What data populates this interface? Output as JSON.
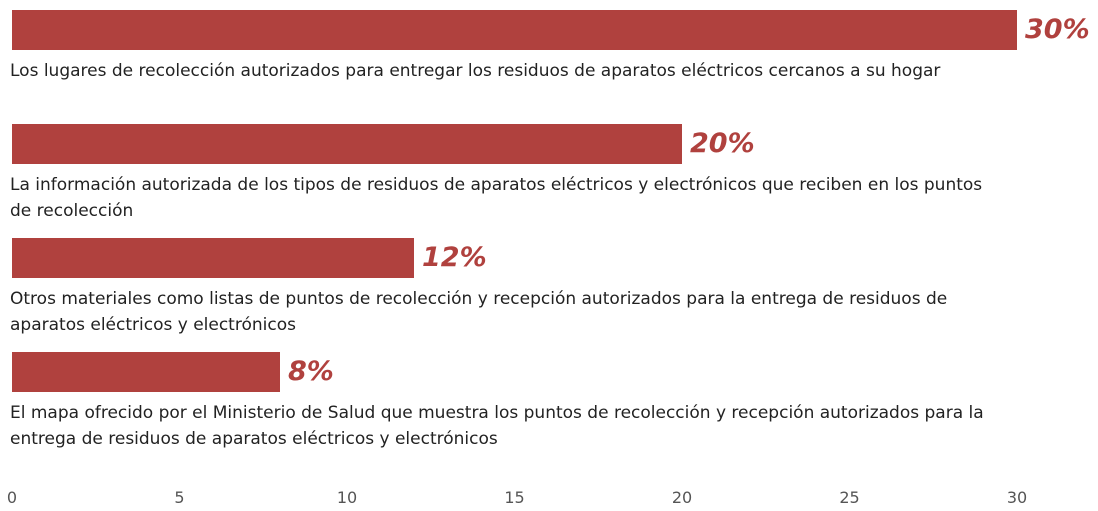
{
  "chart_data": {
    "type": "bar",
    "orientation": "horizontal",
    "categories": [
      "Los lugares de recolección autorizados para entregar los residuos de aparatos eléctricos cercanos a su hogar",
      "La información autorizada de los tipos de residuos de aparatos eléctricos y electrónicos que reciben en los puntos de recolección",
      "Otros materiales como listas de puntos de recolección y recepción autorizados para la entrega de residuos de aparatos eléctricos y electrónicos",
      "El mapa ofrecido por el Ministerio de Salud que muestra los puntos de recolección y recepción autorizados para la entrega de residuos de aparatos eléctricos y electrónicos"
    ],
    "values": [
      30,
      20,
      12,
      8
    ],
    "value_labels": [
      "30%",
      "20%",
      "12%",
      "8%"
    ],
    "color": "#b0413e",
    "xlim": [
      0,
      30
    ],
    "xticks": [
      0,
      5,
      10,
      15,
      20,
      25,
      30
    ]
  }
}
